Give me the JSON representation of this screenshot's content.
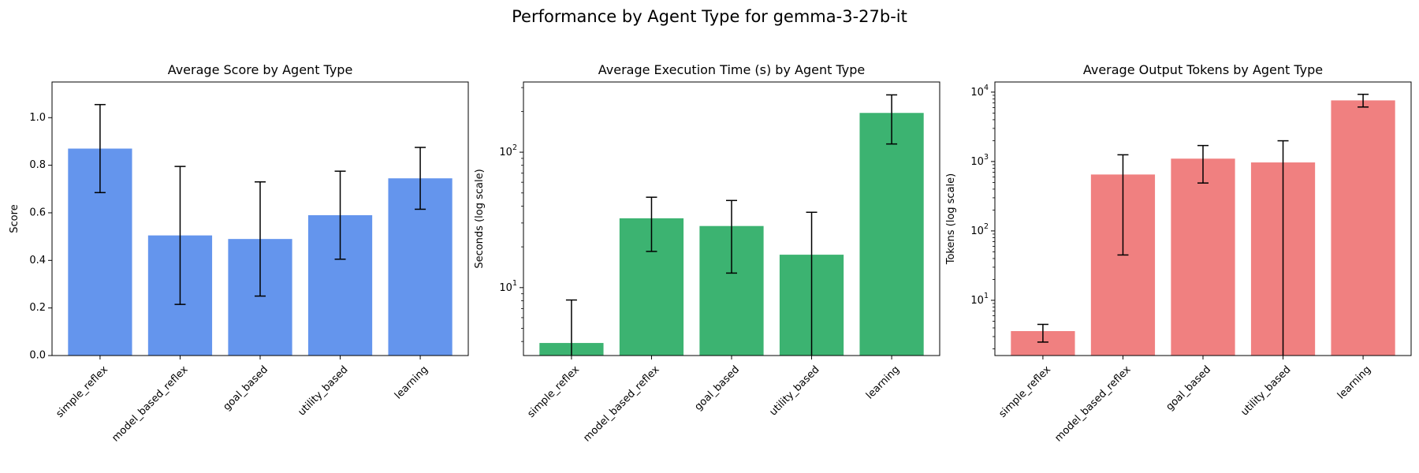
{
  "figure": {
    "title": "Performance by Agent Type for gemma-3-27b-it"
  },
  "chart_data": [
    {
      "type": "bar",
      "title": "Average Score by Agent Type",
      "xlabel": "",
      "ylabel": "Score",
      "yscale": "linear",
      "ylim": [
        0,
        1.15
      ],
      "yticks": [
        0.0,
        0.2,
        0.4,
        0.6,
        0.8,
        1.0
      ],
      "ytick_labels": [
        "0.0",
        "0.2",
        "0.4",
        "0.6",
        "0.8",
        "1.0"
      ],
      "categories": [
        "simple_reflex",
        "model_based_reflex",
        "goal_based",
        "utility_based",
        "learning"
      ],
      "values": [
        0.87,
        0.505,
        0.49,
        0.59,
        0.745
      ],
      "error_low": [
        0.685,
        0.215,
        0.25,
        0.405,
        0.615
      ],
      "error_high": [
        1.055,
        0.795,
        0.73,
        0.775,
        0.875
      ],
      "color": "#6495ED",
      "grid": false
    },
    {
      "type": "bar",
      "title": "Average Execution Time (s) by Agent Type",
      "xlabel": "",
      "ylabel": "Seconds (log scale)",
      "yscale": "log",
      "ylim": [
        3.15,
        330
      ],
      "yticks": [
        10,
        100
      ],
      "ytick_labels": [
        "10^1",
        "10^2"
      ],
      "categories": [
        "simple_reflex",
        "model_based_reflex",
        "goal_based",
        "utility_based",
        "learning"
      ],
      "values": [
        3.9,
        32.5,
        28.5,
        17.5,
        195
      ],
      "error_low": [
        3.15,
        18.5,
        12.8,
        3.15,
        115
      ],
      "error_high": [
        8.1,
        46.5,
        44,
        36,
        265
      ],
      "color": "#3CB371",
      "grid": false
    },
    {
      "type": "bar",
      "title": "Average Output Tokens by Agent Type",
      "xlabel": "",
      "ylabel": "Tokens (log scale)",
      "yscale": "log",
      "ylim": [
        1.6,
        14000
      ],
      "yticks": [
        10,
        100,
        1000,
        10000
      ],
      "ytick_labels": [
        "10^1",
        "10^2",
        "10^3",
        "10^4"
      ],
      "categories": [
        "simple_reflex",
        "model_based_reflex",
        "goal_based",
        "utility_based",
        "learning"
      ],
      "values": [
        3.6,
        650,
        1100,
        970,
        7600
      ],
      "error_low": [
        2.5,
        45,
        490,
        1.6,
        6100
      ],
      "error_high": [
        4.5,
        1250,
        1700,
        1990,
        9300
      ],
      "color": "#F08080",
      "grid": false
    }
  ]
}
